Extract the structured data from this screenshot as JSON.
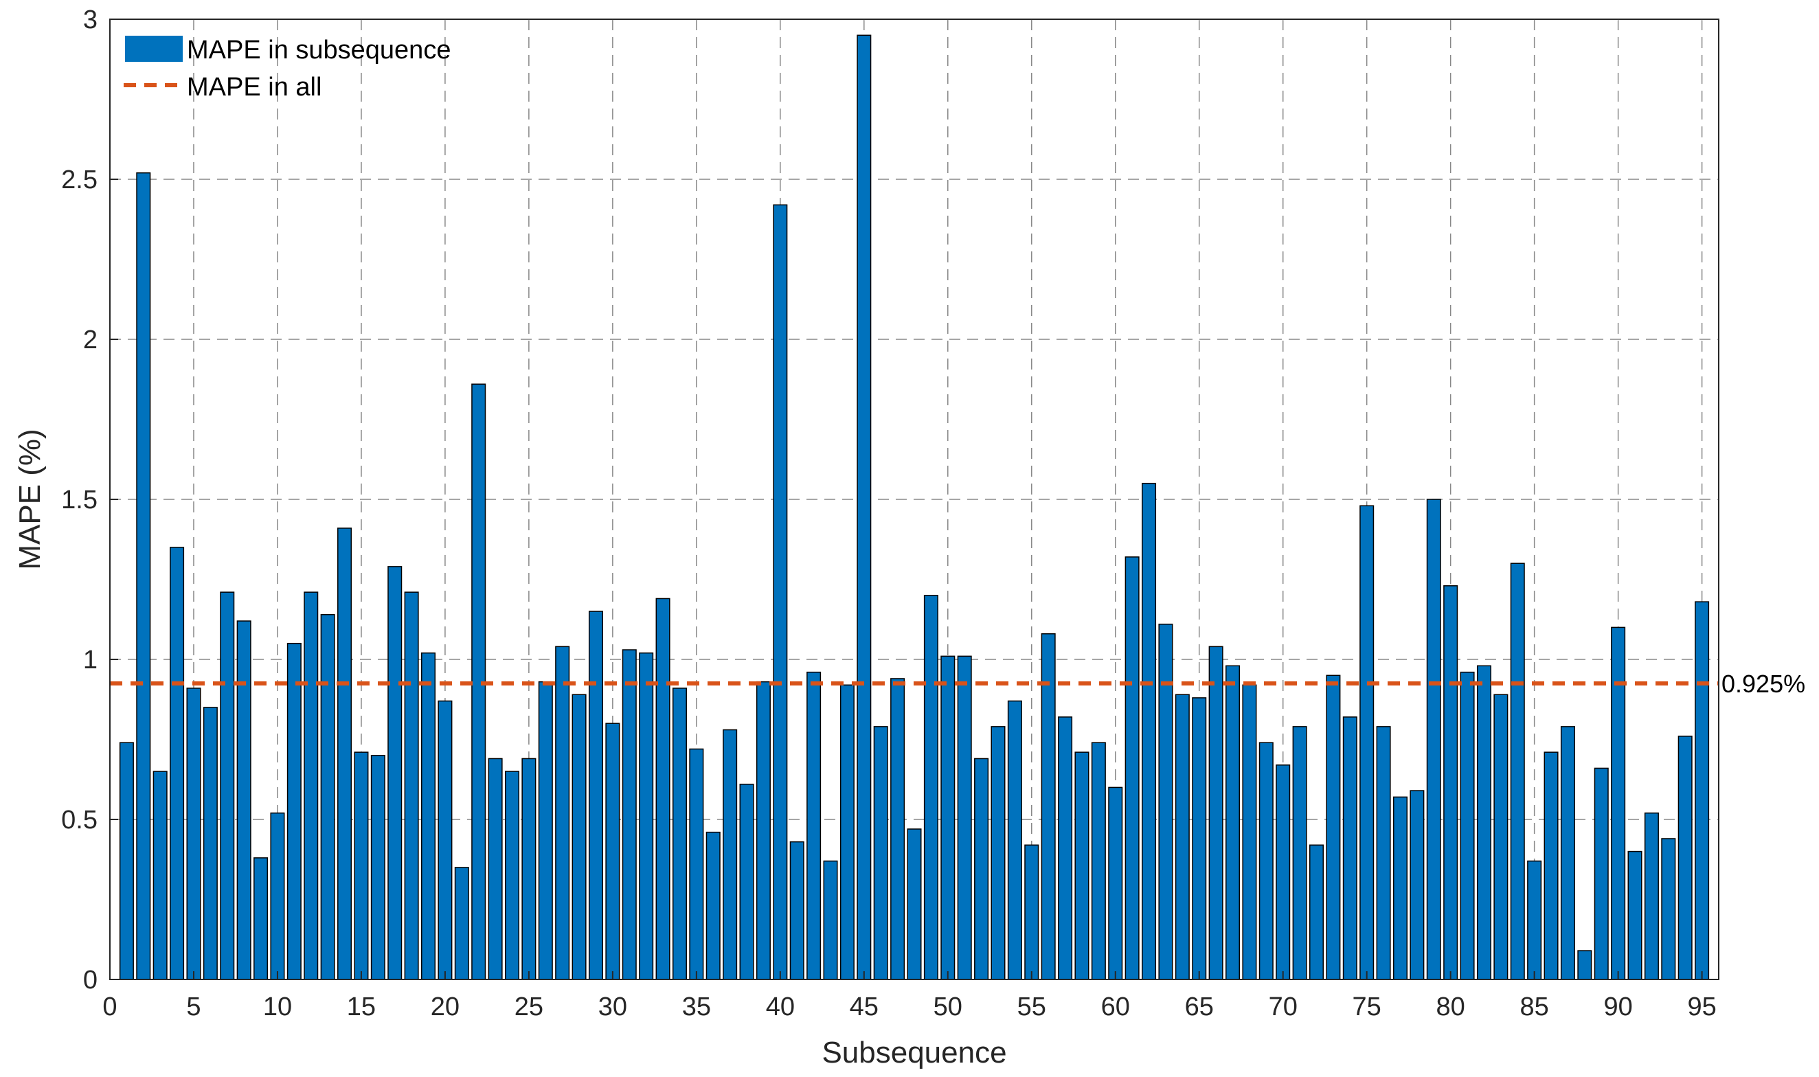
{
  "chart_data": {
    "type": "bar",
    "title": "",
    "xlabel": "Subsequence",
    "ylabel": "MAPE (%)",
    "xlim": [
      0,
      96
    ],
    "ylim": [
      0,
      3
    ],
    "xticks": [
      0,
      5,
      10,
      15,
      20,
      25,
      30,
      35,
      40,
      45,
      50,
      55,
      60,
      65,
      70,
      75,
      80,
      85,
      90,
      95
    ],
    "yticks": [
      0,
      0.5,
      1,
      1.5,
      2,
      2.5,
      3
    ],
    "ytick_labels": [
      "0",
      "0.5",
      "1",
      "1.5",
      "2",
      "2.5",
      "3"
    ],
    "grid": true,
    "legend_position": "top-left",
    "x": [
      1,
      2,
      3,
      4,
      5,
      6,
      7,
      8,
      9,
      10,
      11,
      12,
      13,
      14,
      15,
      16,
      17,
      18,
      19,
      20,
      21,
      22,
      23,
      24,
      25,
      26,
      27,
      28,
      29,
      30,
      31,
      32,
      33,
      34,
      35,
      36,
      37,
      38,
      39,
      40,
      41,
      42,
      43,
      44,
      45,
      46,
      47,
      48,
      49,
      50,
      51,
      52,
      53,
      54,
      55,
      56,
      57,
      58,
      59,
      60,
      61,
      62,
      63,
      64,
      65,
      66,
      67,
      68,
      69,
      70,
      71,
      72,
      73,
      74,
      75,
      76,
      77,
      78,
      79,
      80,
      81,
      82,
      83,
      84,
      85,
      86,
      87,
      88,
      89,
      90,
      91,
      92,
      93,
      94,
      95
    ],
    "series": [
      {
        "name": "MAPE in subsequence",
        "kind": "bar",
        "color": "#0072BD",
        "values": [
          0.74,
          2.52,
          0.65,
          1.35,
          0.91,
          0.85,
          1.21,
          1.12,
          0.38,
          0.52,
          1.05,
          1.21,
          1.14,
          1.41,
          0.71,
          0.7,
          1.29,
          1.21,
          1.02,
          0.87,
          0.35,
          1.86,
          0.69,
          0.65,
          0.69,
          0.93,
          1.04,
          0.89,
          1.15,
          0.8,
          1.03,
          1.02,
          1.19,
          0.91,
          0.72,
          0.46,
          0.78,
          0.61,
          0.93,
          2.42,
          0.43,
          0.96,
          0.37,
          0.92,
          2.95,
          0.79,
          0.94,
          0.47,
          1.2,
          1.01,
          1.01,
          0.69,
          0.79,
          0.87,
          0.42,
          1.08,
          0.82,
          0.71,
          0.74,
          0.6,
          1.32,
          1.55,
          1.11,
          0.89,
          0.88,
          1.04,
          0.98,
          0.92,
          0.74,
          0.67,
          0.79,
          0.42,
          0.95,
          0.82,
          1.48,
          0.79,
          0.57,
          0.59,
          1.5,
          1.23,
          0.96,
          0.98,
          0.89,
          1.3,
          0.37,
          0.71,
          0.79,
          0.09,
          0.66,
          1.1,
          0.4,
          0.52,
          0.44,
          0.76,
          1.18
        ]
      },
      {
        "name": "MAPE in all",
        "kind": "reference-line",
        "color": "#D95319",
        "value": 0.925,
        "label": "0.925%"
      }
    ]
  }
}
